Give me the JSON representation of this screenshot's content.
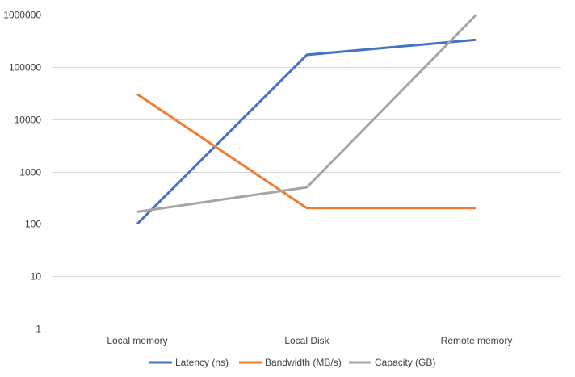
{
  "chart_data": {
    "type": "line",
    "title": "",
    "xlabel": "",
    "ylabel": "",
    "y_scale": "log",
    "ylim": [
      1,
      1000000
    ],
    "y_ticks": [
      "1",
      "10",
      "100",
      "1000",
      "10000",
      "100000",
      "1000000"
    ],
    "y_tick_values": [
      1,
      10,
      100,
      1000,
      10000,
      100000,
      1000000
    ],
    "categories": [
      "Local memory",
      "Local Disk",
      "Remote memory"
    ],
    "grid": true,
    "legend_position": "bottom",
    "series": [
      {
        "name": "Latency (ns)",
        "color": "#4472c4",
        "values": [
          100,
          170000,
          330000
        ]
      },
      {
        "name": "Bandwidth (MB/s)",
        "color": "#ed7d31",
        "values": [
          30000,
          200,
          200
        ]
      },
      {
        "name": "Capacity (GB)",
        "color": "#a5a5a5",
        "values": [
          170,
          500,
          1000000
        ]
      }
    ]
  }
}
